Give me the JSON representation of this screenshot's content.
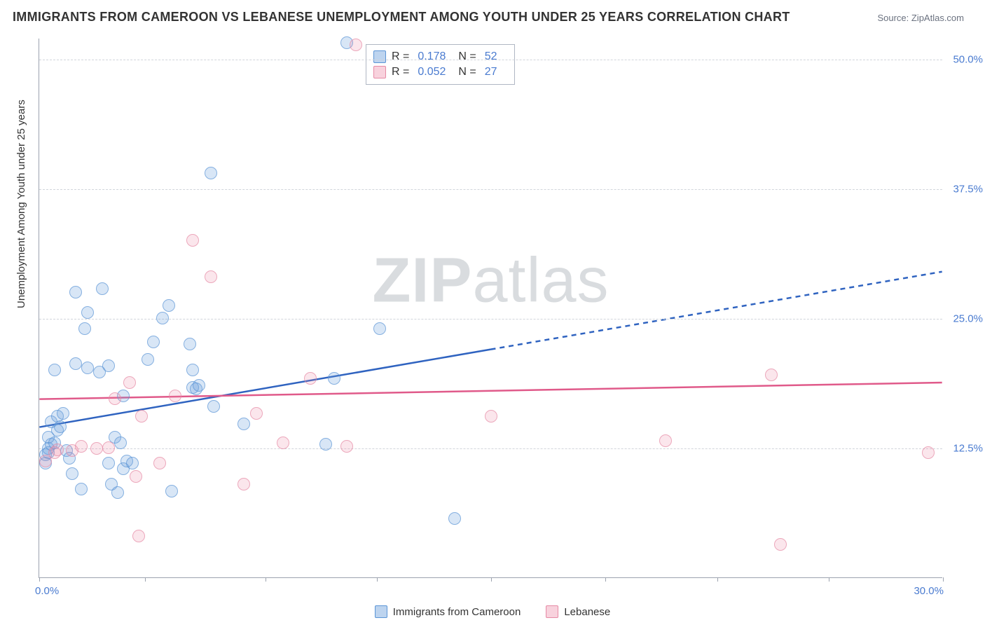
{
  "title": "IMMIGRANTS FROM CAMEROON VS LEBANESE UNEMPLOYMENT AMONG YOUTH UNDER 25 YEARS CORRELATION CHART",
  "source_prefix": "Source: ",
  "source_name": "ZipAtlas.com",
  "watermark_a": "ZIP",
  "watermark_b": "atlas",
  "chart": {
    "type": "scatter",
    "xlim": [
      0,
      30
    ],
    "ylim": [
      0,
      52
    ],
    "x_axis_label_min": "0.0%",
    "x_axis_label_max": "30.0%",
    "y_axis_title": "Unemployment Among Youth under 25 years",
    "y_ticks": [
      {
        "v": 12.5,
        "label": "12.5%"
      },
      {
        "v": 25.0,
        "label": "25.0%"
      },
      {
        "v": 37.5,
        "label": "37.5%"
      },
      {
        "v": 50.0,
        "label": "50.0%"
      }
    ],
    "x_tick_positions": [
      0,
      3.5,
      7.5,
      11.2,
      15.0,
      18.8,
      22.5,
      26.2,
      30.0
    ],
    "background_color": "#ffffff",
    "grid_color": "#d1d5db",
    "axis_color": "#9ca3af",
    "tick_label_color": "#4a7bd0"
  },
  "series": [
    {
      "name": "Immigrants from Cameroon",
      "color_fill": "rgba(108,160,220,0.35)",
      "color_stroke": "#5b95d6",
      "trend_color": "#2f63c0",
      "R": "0.178",
      "N": "52",
      "trend": {
        "x1": 0,
        "y1": 14.5,
        "x2_solid": 15,
        "y2_solid": 22.0,
        "x2": 30,
        "y2": 29.5
      },
      "points": [
        [
          0.2,
          11.0
        ],
        [
          0.2,
          11.8
        ],
        [
          0.3,
          12.4
        ],
        [
          0.3,
          12.0
        ],
        [
          0.4,
          12.8
        ],
        [
          0.3,
          13.5
        ],
        [
          0.5,
          13.0
        ],
        [
          0.6,
          14.2
        ],
        [
          0.4,
          15.0
        ],
        [
          0.6,
          15.5
        ],
        [
          0.7,
          14.5
        ],
        [
          0.8,
          15.8
        ],
        [
          0.5,
          20.0
        ],
        [
          0.9,
          12.2
        ],
        [
          1.0,
          11.5
        ],
        [
          1.1,
          10.0
        ],
        [
          1.4,
          8.5
        ],
        [
          1.5,
          24.0
        ],
        [
          1.2,
          27.5
        ],
        [
          1.2,
          20.6
        ],
        [
          1.6,
          25.5
        ],
        [
          2.1,
          27.8
        ],
        [
          2.0,
          19.8
        ],
        [
          2.3,
          20.4
        ],
        [
          2.3,
          11.0
        ],
        [
          2.4,
          9.0
        ],
        [
          2.5,
          13.5
        ],
        [
          2.7,
          13.0
        ],
        [
          2.6,
          8.2
        ],
        [
          2.8,
          17.5
        ],
        [
          2.8,
          10.5
        ],
        [
          2.9,
          11.2
        ],
        [
          3.1,
          11.0
        ],
        [
          3.6,
          21.0
        ],
        [
          3.8,
          22.7
        ],
        [
          4.1,
          25.0
        ],
        [
          4.3,
          26.2
        ],
        [
          4.4,
          8.3
        ],
        [
          5.0,
          22.5
        ],
        [
          5.1,
          20.0
        ],
        [
          5.1,
          18.3
        ],
        [
          5.2,
          18.2
        ],
        [
          5.3,
          18.5
        ],
        [
          5.7,
          39.0
        ],
        [
          5.8,
          16.5
        ],
        [
          6.8,
          14.8
        ],
        [
          9.5,
          12.8
        ],
        [
          9.8,
          19.2
        ],
        [
          10.2,
          51.5
        ],
        [
          11.3,
          24.0
        ],
        [
          13.8,
          5.7
        ],
        [
          1.6,
          20.2
        ]
      ]
    },
    {
      "name": "Lebanese",
      "color_fill": "rgba(236,138,165,0.28)",
      "color_stroke": "#e68aa5",
      "trend_color": "#e05a8a",
      "R": "0.052",
      "N": "27",
      "trend": {
        "x1": 0,
        "y1": 17.2,
        "x2_solid": 30,
        "y2_solid": 18.8,
        "x2": 30,
        "y2": 18.8
      },
      "points": [
        [
          0.2,
          11.2
        ],
        [
          0.5,
          12.0
        ],
        [
          0.6,
          12.3
        ],
        [
          1.1,
          12.2
        ],
        [
          1.4,
          12.6
        ],
        [
          1.9,
          12.4
        ],
        [
          2.3,
          12.5
        ],
        [
          2.5,
          17.2
        ],
        [
          3.0,
          18.8
        ],
        [
          3.2,
          9.7
        ],
        [
          3.3,
          4.0
        ],
        [
          3.4,
          15.5
        ],
        [
          4.0,
          11.0
        ],
        [
          4.5,
          17.5
        ],
        [
          5.1,
          32.5
        ],
        [
          5.7,
          29.0
        ],
        [
          6.8,
          9.0
        ],
        [
          7.2,
          15.8
        ],
        [
          8.1,
          13.0
        ],
        [
          9.0,
          19.2
        ],
        [
          10.2,
          12.6
        ],
        [
          10.5,
          51.3
        ],
        [
          15.0,
          15.5
        ],
        [
          20.8,
          13.2
        ],
        [
          24.3,
          19.5
        ],
        [
          24.6,
          3.2
        ],
        [
          29.5,
          12.0
        ]
      ]
    }
  ],
  "stats_labels": {
    "R": "R  =",
    "N": "N  ="
  },
  "legend_labels": [
    "Immigrants from Cameroon",
    "Lebanese"
  ]
}
